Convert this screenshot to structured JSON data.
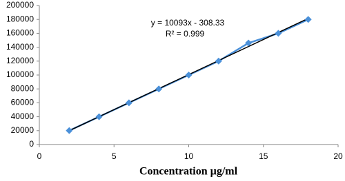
{
  "chart_data": {
    "type": "line",
    "x_label": "Concentration µg/ml",
    "x": [
      2,
      4,
      6,
      8,
      10,
      12,
      14,
      16,
      18
    ],
    "series": [
      {
        "color": "#4a90d9",
        "values": [
          20000,
          40000,
          60000,
          80000,
          100000,
          120000,
          146000,
          160000,
          180000
        ]
      }
    ],
    "trendline": {
      "equation": "y = 10093x - 308.33",
      "r_squared": "R² = 0.999",
      "slope": 10093,
      "intercept": -308.33,
      "color": "#000000"
    },
    "xlim": [
      0,
      20
    ],
    "xticks": [
      0,
      5,
      10,
      15,
      20
    ],
    "ylim": [
      0,
      200000
    ],
    "yticks": [
      0,
      20000,
      40000,
      60000,
      80000,
      100000,
      120000,
      140000,
      160000,
      180000,
      200000
    ],
    "grid": false
  }
}
